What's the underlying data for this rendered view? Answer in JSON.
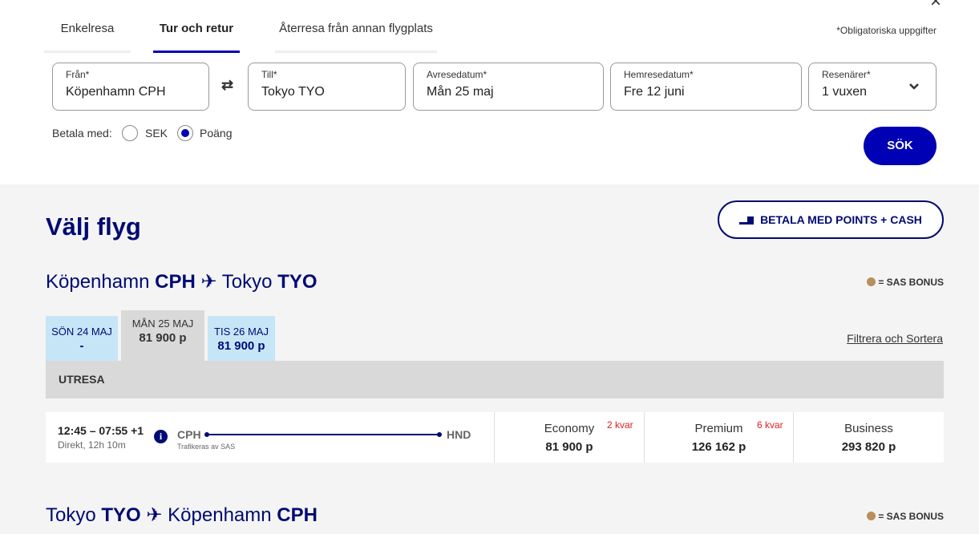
{
  "search": {
    "tabs": [
      {
        "label": "Enkelresa",
        "active": false
      },
      {
        "label": "Tur och retur",
        "active": true
      },
      {
        "label": "Återresa från annan flygplats",
        "active": false
      }
    ],
    "required_note": "*Obligatoriska uppgifter",
    "close_icon": "×",
    "fields": {
      "from": {
        "label": "Från*",
        "value": "Köpenhamn CPH"
      },
      "swap_icon": "⇄",
      "to": {
        "label": "Till*",
        "value": "Tokyo TYO"
      },
      "depart": {
        "label": "Avresedatum*",
        "value": "Mån 25 maj"
      },
      "return": {
        "label": "Hemresedatum*",
        "value": "Fre 12 juni"
      },
      "travellers": {
        "label": "Resenärer*",
        "value": "1 vuxen"
      }
    },
    "pay_with": {
      "label": "Betala med:",
      "options": [
        {
          "label": "SEK",
          "selected": false
        },
        {
          "label": "Poäng",
          "selected": true
        }
      ]
    },
    "search_button": "SÖK"
  },
  "results": {
    "title": "Välj flyg",
    "points_cash_button": "BETALA MED POINTS + CASH",
    "bonus_legend": "= SAS BONUS",
    "bonus_color": "#b98f5c",
    "outbound": {
      "from_city": "Köpenhamn",
      "from_code": "CPH",
      "to_city": "Tokyo",
      "to_code": "TYO",
      "dates": [
        {
          "day": "SÖN 24 MAJ",
          "price": "-"
        },
        {
          "day": "MÅN 25 MAJ",
          "price": "81 900 p",
          "selected": true
        },
        {
          "day": "TIS 26 MAJ",
          "price": "81 900 p"
        }
      ],
      "filter_link": "Filtrera och Sortera",
      "section_label": "UTRESA",
      "flight": {
        "times": "12:45 – 07:55 +1",
        "details": "Direkt, 12h 10m",
        "origin": "CPH",
        "destination": "HND",
        "operator": "Trafikeras av SAS",
        "cabins": [
          {
            "name": "Economy",
            "price": "81 900 p",
            "seats_left": "2 kvar"
          },
          {
            "name": "Premium",
            "price": "126 162 p",
            "seats_left": "6 kvar"
          },
          {
            "name": "Business",
            "price": "293 820 p"
          }
        ]
      }
    },
    "inbound": {
      "from_city": "Tokyo",
      "from_code": "TYO",
      "to_city": "Köpenhamn",
      "to_code": "CPH"
    }
  }
}
